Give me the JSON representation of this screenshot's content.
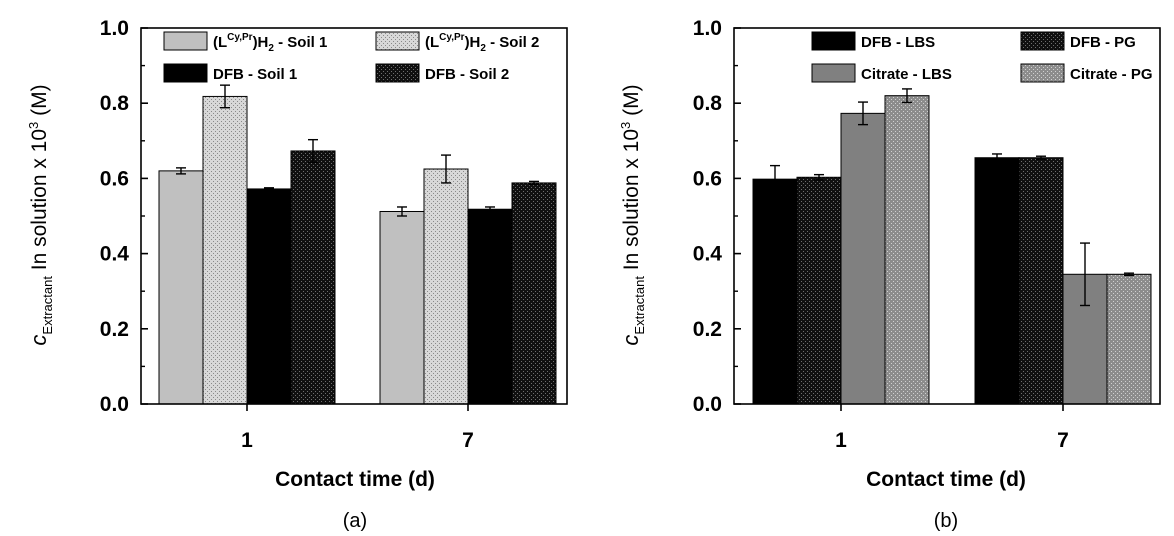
{
  "chart_data": [
    {
      "type": "bar",
      "panel_label": "(a)",
      "categories": [
        "1",
        "7"
      ],
      "xlabel": "Contact time (d)",
      "ylabel": {
        "base": "c",
        "sub": "Extractant",
        "main": " In solution x 10",
        "sup": "3",
        "tail": " (M)"
      },
      "ylim": [
        0,
        1.0
      ],
      "yticks": [
        "0.0",
        "0.2",
        "0.4",
        "0.6",
        "0.8",
        "1.0"
      ],
      "legend_position": "top",
      "series": [
        {
          "name": "(L<Cy,Pr>)H2 - Soil 1",
          "legend": {
            "pre": "(L",
            "sup": "Cy,Pr",
            "mid": ")H",
            "sub": "2",
            "post": " - Soil 1"
          },
          "values": [
            0.62,
            0.512
          ],
          "errors": [
            0.008,
            0.012
          ],
          "fill": "#c0c0c0",
          "pattern": "none"
        },
        {
          "name": "(L<Cy,Pr>)H2 - Soil 2",
          "legend": {
            "pre": "(L",
            "sup": "Cy,Pr",
            "mid": ")H",
            "sub": "2",
            "post": " - Soil 2"
          },
          "values": [
            0.818,
            0.625
          ],
          "errors": [
            0.03,
            0.037
          ],
          "fill": "#d4d4d4",
          "pattern": "light-dots"
        },
        {
          "name": "DFB - Soil 1",
          "legend": {
            "pre": "DFB - Soil 1"
          },
          "values": [
            0.572,
            0.518
          ],
          "errors": [
            0.003,
            0.006
          ],
          "fill": "#000000",
          "pattern": "none"
        },
        {
          "name": "DFB - Soil 2",
          "legend": {
            "pre": "DFB - Soil 2"
          },
          "values": [
            0.673,
            0.588
          ],
          "errors": [
            0.03,
            0.004
          ],
          "fill": "#141414",
          "pattern": "dark-dots"
        }
      ]
    },
    {
      "type": "bar",
      "panel_label": "(b)",
      "categories": [
        "1",
        "7"
      ],
      "xlabel": "Contact time (d)",
      "ylabel": {
        "base": "c",
        "sub": "Extractant",
        "main": " In solution x 10",
        "sup": "3",
        "tail": " (M)"
      },
      "ylim": [
        0,
        1.0
      ],
      "yticks": [
        "0.0",
        "0.2",
        "0.4",
        "0.6",
        "0.8",
        "1.0"
      ],
      "legend_position": "top",
      "series": [
        {
          "name": "DFB - LBS",
          "legend": {
            "pre": "DFB - LBS"
          },
          "values": [
            0.598,
            0.655
          ],
          "errors": [
            0.036,
            0.01
          ],
          "fill": "#000000",
          "pattern": "none"
        },
        {
          "name": "DFB - PG",
          "legend": {
            "pre": "DFB - PG"
          },
          "values": [
            0.603,
            0.655
          ],
          "errors": [
            0.007,
            0.004
          ],
          "fill": "#141414",
          "pattern": "dark-dots"
        },
        {
          "name": "Citrate - LBS",
          "legend": {
            "pre": "Citrate - LBS"
          },
          "values": [
            0.773,
            0.345
          ],
          "errors": [
            0.03,
            0.083
          ],
          "fill": "#808080",
          "pattern": "none"
        },
        {
          "name": "Citrate - PG",
          "legend": {
            "pre": "Citrate - PG"
          },
          "values": [
            0.82,
            0.345
          ],
          "errors": [
            0.018,
            0.003
          ],
          "fill": "#8f8f8f",
          "pattern": "gray-dots"
        }
      ]
    }
  ]
}
